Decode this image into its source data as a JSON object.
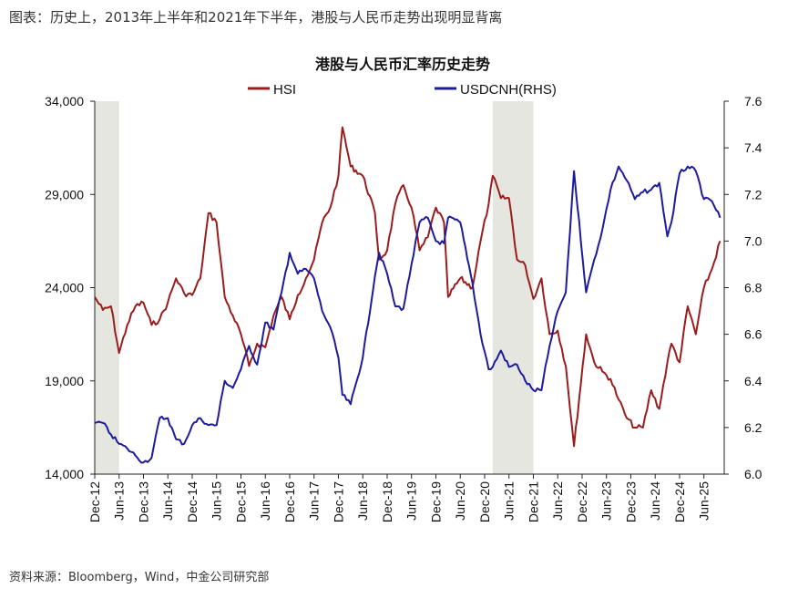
{
  "caption": "图表：历史上，2013年上半年和2021年下半年，港股与人民币走势出现明显背离",
  "source": "资料来源：Bloomberg，Wind，中金公司研究部",
  "chart_data": {
    "type": "line",
    "title": "港股与人民币汇率历史走势",
    "legend": [
      {
        "name": "HSI",
        "color": "#9b1c1c"
      },
      {
        "name": "USDCNH(RHS)",
        "color": "#1c1c9b"
      }
    ],
    "legend_position": "top",
    "xlim": [
      "2012-12",
      "2025-11"
    ],
    "x_tick_labels": [
      "Dec-12",
      "Jun-13",
      "Dec-13",
      "Jun-14",
      "Dec-14",
      "Jun-15",
      "Dec-15",
      "Jun-16",
      "Dec-16",
      "Jun-17",
      "Dec-17",
      "Jun-18",
      "Dec-18",
      "Jun-19",
      "Dec-19",
      "Jun-20",
      "Dec-20",
      "Jun-21",
      "Dec-21",
      "Jun-22",
      "Dec-22",
      "Jun-23",
      "Dec-23",
      "Jun-24",
      "Dec-24",
      "Jun-25"
    ],
    "y_left": {
      "min": 14000,
      "max": 34000,
      "ticks": [
        "14,000",
        "19,000",
        "24,000",
        "29,000",
        "34,000"
      ]
    },
    "y_right": {
      "min": 6.0,
      "max": 7.6,
      "ticks": [
        "6.0",
        "6.2",
        "6.4",
        "6.6",
        "6.8",
        "7.0",
        "7.2",
        "7.4",
        "7.6"
      ]
    },
    "shaded_periods": [
      [
        "2012-12",
        "2013-06"
      ],
      [
        "2021-02",
        "2021-12"
      ]
    ],
    "shaded_color": "#e6e6e1",
    "series": [
      {
        "name": "HSI",
        "axis": "left",
        "color": "#9b1c1c",
        "x": [
          "2012-12",
          "2013-02",
          "2013-04",
          "2013-06",
          "2013-08",
          "2013-10",
          "2013-12",
          "2014-02",
          "2014-04",
          "2014-06",
          "2014-08",
          "2014-10",
          "2014-12",
          "2015-02",
          "2015-04",
          "2015-06",
          "2015-08",
          "2015-10",
          "2015-12",
          "2016-02",
          "2016-04",
          "2016-06",
          "2016-08",
          "2016-10",
          "2016-12",
          "2017-02",
          "2017-04",
          "2017-06",
          "2017-08",
          "2017-10",
          "2017-12",
          "2018-01",
          "2018-03",
          "2018-06",
          "2018-09",
          "2018-10",
          "2018-12",
          "2019-02",
          "2019-04",
          "2019-06",
          "2019-08",
          "2019-10",
          "2019-12",
          "2020-02",
          "2020-03",
          "2020-06",
          "2020-09",
          "2020-11",
          "2021-01",
          "2021-02",
          "2021-04",
          "2021-06",
          "2021-08",
          "2021-10",
          "2021-12",
          "2022-02",
          "2022-04",
          "2022-06",
          "2022-08",
          "2022-10",
          "2023-01",
          "2023-03",
          "2023-05",
          "2023-07",
          "2023-09",
          "2023-11",
          "2024-01",
          "2024-03",
          "2024-05",
          "2024-07",
          "2024-09",
          "2024-10",
          "2024-12",
          "2025-02",
          "2025-04",
          "2025-06",
          "2025-08",
          "2025-10"
        ],
        "y": [
          23500,
          22800,
          23000,
          20500,
          22000,
          23000,
          23200,
          22000,
          22300,
          23200,
          24500,
          23700,
          23600,
          24500,
          28000,
          27500,
          23500,
          22500,
          21500,
          19800,
          21000,
          20800,
          22500,
          23500,
          22300,
          23600,
          24500,
          25500,
          27500,
          28300,
          30000,
          32600,
          30500,
          30000,
          28000,
          25500,
          26000,
          28500,
          29500,
          28300,
          26000,
          26700,
          28300,
          27500,
          23500,
          24500,
          24000,
          26500,
          28500,
          30000,
          28800,
          28800,
          25500,
          25200,
          23400,
          24500,
          21500,
          21700,
          19800,
          15500,
          21500,
          20000,
          19500,
          19100,
          18000,
          17000,
          16500,
          16500,
          18500,
          17500,
          20000,
          21000,
          20000,
          23000,
          21500,
          24000,
          25000,
          26500
        ]
      },
      {
        "name": "USDCNH(RHS)",
        "axis": "right",
        "color": "#1c1c9b",
        "x": [
          "2012-12",
          "2013-02",
          "2013-04",
          "2013-06",
          "2013-08",
          "2013-10",
          "2013-12",
          "2014-02",
          "2014-04",
          "2014-06",
          "2014-08",
          "2014-10",
          "2014-12",
          "2015-02",
          "2015-04",
          "2015-06",
          "2015-08",
          "2015-10",
          "2015-12",
          "2016-02",
          "2016-04",
          "2016-06",
          "2016-08",
          "2016-10",
          "2016-12",
          "2017-02",
          "2017-04",
          "2017-06",
          "2017-08",
          "2017-10",
          "2017-12",
          "2018-01",
          "2018-03",
          "2018-06",
          "2018-09",
          "2018-10",
          "2018-12",
          "2019-02",
          "2019-04",
          "2019-06",
          "2019-08",
          "2019-10",
          "2019-12",
          "2020-02",
          "2020-03",
          "2020-06",
          "2020-09",
          "2020-11",
          "2021-01",
          "2021-02",
          "2021-04",
          "2021-06",
          "2021-08",
          "2021-10",
          "2021-12",
          "2022-02",
          "2022-04",
          "2022-06",
          "2022-08",
          "2022-10",
          "2023-01",
          "2023-03",
          "2023-05",
          "2023-07",
          "2023-09",
          "2023-11",
          "2024-01",
          "2024-03",
          "2024-05",
          "2024-07",
          "2024-09",
          "2024-10",
          "2024-12",
          "2025-02",
          "2025-04",
          "2025-06",
          "2025-08",
          "2025-10"
        ],
        "y": [
          6.22,
          6.22,
          6.17,
          6.13,
          6.11,
          6.08,
          6.05,
          6.07,
          6.24,
          6.24,
          6.15,
          6.13,
          6.21,
          6.24,
          6.21,
          6.21,
          6.4,
          6.37,
          6.45,
          6.55,
          6.47,
          6.65,
          6.62,
          6.78,
          6.95,
          6.86,
          6.88,
          6.84,
          6.7,
          6.63,
          6.5,
          6.34,
          6.3,
          6.5,
          6.85,
          6.95,
          6.86,
          6.72,
          6.71,
          6.9,
          7.08,
          7.1,
          7.0,
          6.99,
          7.1,
          7.08,
          6.82,
          6.6,
          6.45,
          6.46,
          6.53,
          6.46,
          6.47,
          6.4,
          6.36,
          6.36,
          6.55,
          6.7,
          6.78,
          7.3,
          6.78,
          6.92,
          7.05,
          7.22,
          7.32,
          7.26,
          7.18,
          7.21,
          7.22,
          7.25,
          7.02,
          7.08,
          7.29,
          7.32,
          7.3,
          7.18,
          7.17,
          7.1
        ]
      }
    ]
  }
}
